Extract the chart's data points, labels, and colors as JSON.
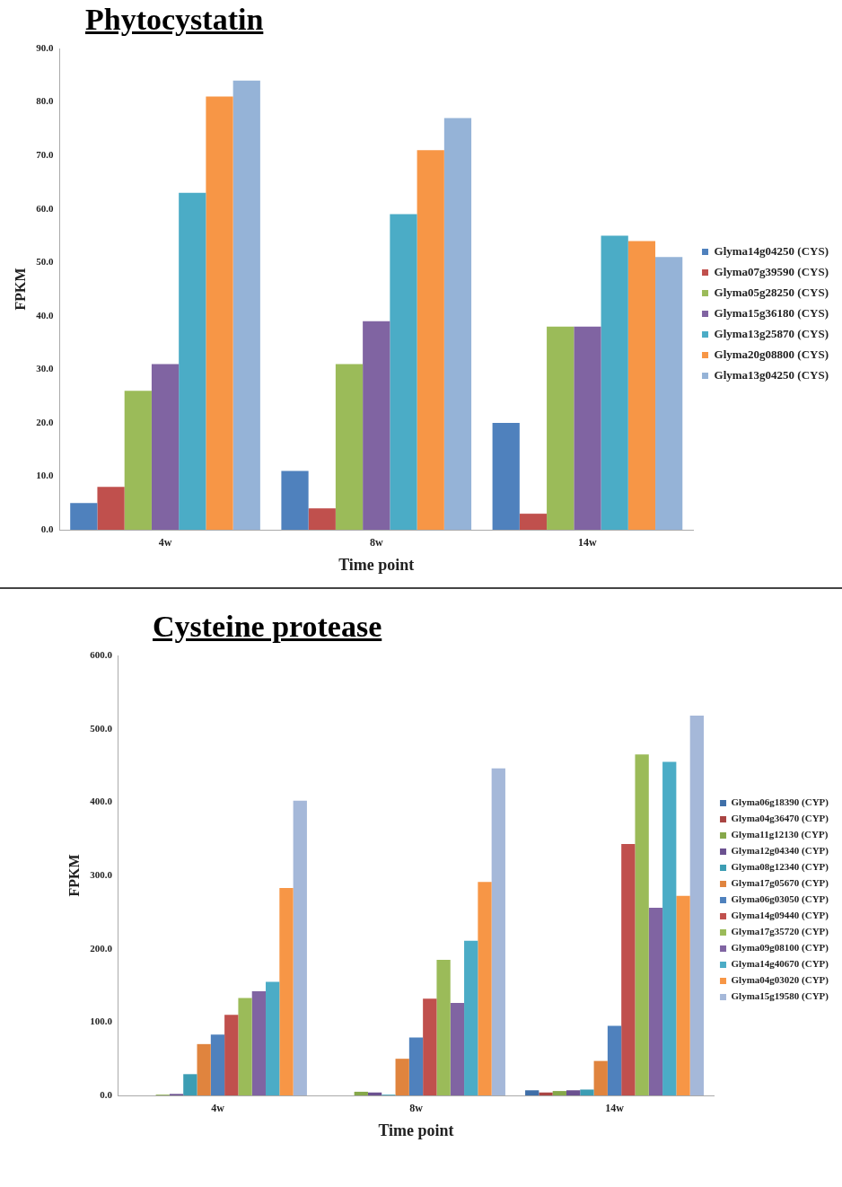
{
  "chart_data": [
    {
      "type": "bar",
      "title": "Phytocystatin",
      "xlabel": "Time point",
      "ylabel": "FPKM",
      "categories": [
        "4w",
        "8w",
        "14w"
      ],
      "series": [
        {
          "name": "Glyma14g04250 (CYS)",
          "color": "#4f81bd",
          "values": [
            5,
            11,
            20
          ]
        },
        {
          "name": "Glyma07g39590 (CYS)",
          "color": "#c0504d",
          "values": [
            8,
            4,
            3
          ]
        },
        {
          "name": "Glyma05g28250 (CYS)",
          "color": "#9bbb59",
          "values": [
            26,
            31,
            38
          ]
        },
        {
          "name": "Glyma15g36180 (CYS)",
          "color": "#8064a2",
          "values": [
            31,
            39,
            38
          ]
        },
        {
          "name": "Glyma13g25870 (CYS)",
          "color": "#4bacc6",
          "values": [
            63,
            59,
            55
          ]
        },
        {
          "name": "Glyma20g08800 (CYS)",
          "color": "#f79646",
          "values": [
            81,
            71,
            54
          ]
        },
        {
          "name": "Glyma13g04250 (CYS)",
          "color": "#95b3d7",
          "values": [
            84,
            77,
            51
          ]
        }
      ],
      "ylim": [
        0,
        90
      ],
      "yticks": [
        {
          "value": 0,
          "label": "0.0"
        },
        {
          "value": 10,
          "label": "10.0"
        },
        {
          "value": 20,
          "label": "20.0"
        },
        {
          "value": 30,
          "label": "30.0"
        },
        {
          "value": 40,
          "label": "40.0"
        },
        {
          "value": 50,
          "label": "50.0"
        },
        {
          "value": 60,
          "label": "60.0"
        },
        {
          "value": 70,
          "label": "70.0"
        },
        {
          "value": 80,
          "label": "80.0"
        },
        {
          "value": 90,
          "label": "90.0"
        }
      ],
      "grid": false,
      "legend": "right"
    },
    {
      "type": "bar",
      "title": "Cysteine protease",
      "xlabel": "Time point",
      "ylabel": "FPKM",
      "categories": [
        "4w",
        "8w",
        "14w"
      ],
      "series": [
        {
          "name": "Glyma06g18390 (CYP)",
          "color": "#3f6fa8",
          "values": [
            0,
            0,
            7
          ]
        },
        {
          "name": "Glyma04g36470 (CYP)",
          "color": "#a94442",
          "values": [
            0,
            0,
            4
          ]
        },
        {
          "name": "Glyma11g12130 (CYP)",
          "color": "#86a84a",
          "values": [
            1,
            5,
            6
          ]
        },
        {
          "name": "Glyma12g04340 (CYP)",
          "color": "#6b5190",
          "values": [
            2,
            4,
            7
          ]
        },
        {
          "name": "Glyma08g12340 (CYP)",
          "color": "#3c9db3",
          "values": [
            29,
            1,
            8
          ]
        },
        {
          "name": "Glyma17g05670 (CYP)",
          "color": "#e0843e",
          "values": [
            70,
            50,
            47
          ]
        },
        {
          "name": "Glyma06g03050 (CYP)",
          "color": "#4f81bd",
          "values": [
            83,
            79,
            95
          ]
        },
        {
          "name": "Glyma14g09440 (CYP)",
          "color": "#c0504d",
          "values": [
            110,
            132,
            343
          ]
        },
        {
          "name": "Glyma17g35720 (CYP)",
          "color": "#9bbb59",
          "values": [
            133,
            185,
            465
          ]
        },
        {
          "name": "Glyma09g08100 (CYP)",
          "color": "#8064a2",
          "values": [
            142,
            126,
            256
          ]
        },
        {
          "name": "Glyma14g40670 (CYP)",
          "color": "#4bacc6",
          "values": [
            155,
            211,
            455
          ]
        },
        {
          "name": "Glyma04g03020 (CYP)",
          "color": "#f79646",
          "values": [
            283,
            291,
            272
          ]
        },
        {
          "name": "Glyma15g19580 (CYP)",
          "color": "#a5b8d9",
          "values": [
            402,
            446,
            518
          ]
        }
      ],
      "ylim": [
        0,
        600
      ],
      "yticks": [
        {
          "value": 0,
          "label": "0.0"
        },
        {
          "value": 100,
          "label": "100.0"
        },
        {
          "value": 200,
          "label": "200.0"
        },
        {
          "value": 300,
          "label": "300.0"
        },
        {
          "value": 400,
          "label": "400.0"
        },
        {
          "value": 500,
          "label": "500.0"
        },
        {
          "value": 600,
          "label": "600.0"
        }
      ],
      "grid": false,
      "legend": "right"
    }
  ]
}
